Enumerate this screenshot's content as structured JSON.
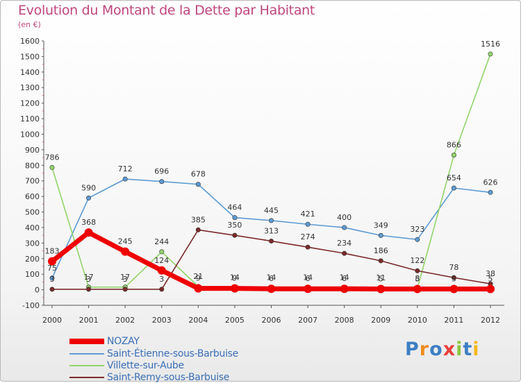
{
  "header": {
    "title": "Evolution du Montant de la Dette par Habitant",
    "subtitle": "(en €)"
  },
  "logo": {
    "text": "Proxiti",
    "letter_colors": [
      "#3d7fc4",
      "#f08c1e",
      "#3d7fc4",
      "#e8403a",
      "#8cc63f",
      "#3d7fc4",
      "#f5b71b"
    ]
  },
  "chart_data": {
    "type": "line",
    "title": "Evolution du Montant de la Dette par Habitant",
    "subtitle": "(en €)",
    "xlabel": "",
    "ylabel": "",
    "x": [
      "2000",
      "2001",
      "2002",
      "2003",
      "2004",
      "2005",
      "2006",
      "2007",
      "2008",
      "2009",
      "2010",
      "2011",
      "2012"
    ],
    "ylim": [
      -100,
      1600
    ],
    "yticks": [
      -100,
      0,
      100,
      200,
      300,
      400,
      500,
      600,
      700,
      800,
      900,
      1000,
      1100,
      1200,
      1300,
      1400,
      1500,
      1600
    ],
    "grid": false,
    "legend_position": "bottom-left",
    "series": [
      {
        "name": "NOZAY",
        "color": "#ee0000",
        "values": [
          183,
          368,
          245,
          124,
          9,
          9,
          6,
          6,
          6,
          5,
          5,
          5,
          5
        ]
      },
      {
        "name": "Saint-Étienne-sous-Barbuise",
        "color": "#5e9bd3",
        "values": [
          75,
          590,
          712,
          696,
          678,
          464,
          445,
          421,
          400,
          349,
          323,
          654,
          626
        ]
      },
      {
        "name": "Villette-sur-Aube",
        "color": "#92d46a",
        "values": [
          786,
          17,
          17,
          244,
          21,
          14,
          14,
          14,
          14,
          11,
          8,
          866,
          1516
        ]
      },
      {
        "name": "Saint-Remy-sous-Barbuise",
        "color": "#7b2a2a",
        "values": [
          3,
          3,
          3,
          3,
          385,
          350,
          313,
          274,
          234,
          186,
          122,
          78,
          38
        ]
      }
    ],
    "data_labels": [
      [
        "183",
        "368",
        "245",
        "124",
        "9",
        "9",
        "6",
        "6",
        "6",
        "5",
        "5",
        "5",
        "5"
      ],
      [
        "75",
        "590",
        "712",
        "696",
        "678",
        "464",
        "445",
        "421",
        "400",
        "349",
        "323",
        "654",
        "626"
      ],
      [
        "786",
        "17",
        "17",
        "244",
        "21",
        "14",
        "14",
        "14",
        "14",
        "11",
        "8",
        "866",
        "1516"
      ],
      [
        "3",
        "3",
        "3",
        "3",
        "385",
        "350",
        "313",
        "274",
        "234",
        "186",
        "122",
        "78",
        "38"
      ]
    ]
  }
}
